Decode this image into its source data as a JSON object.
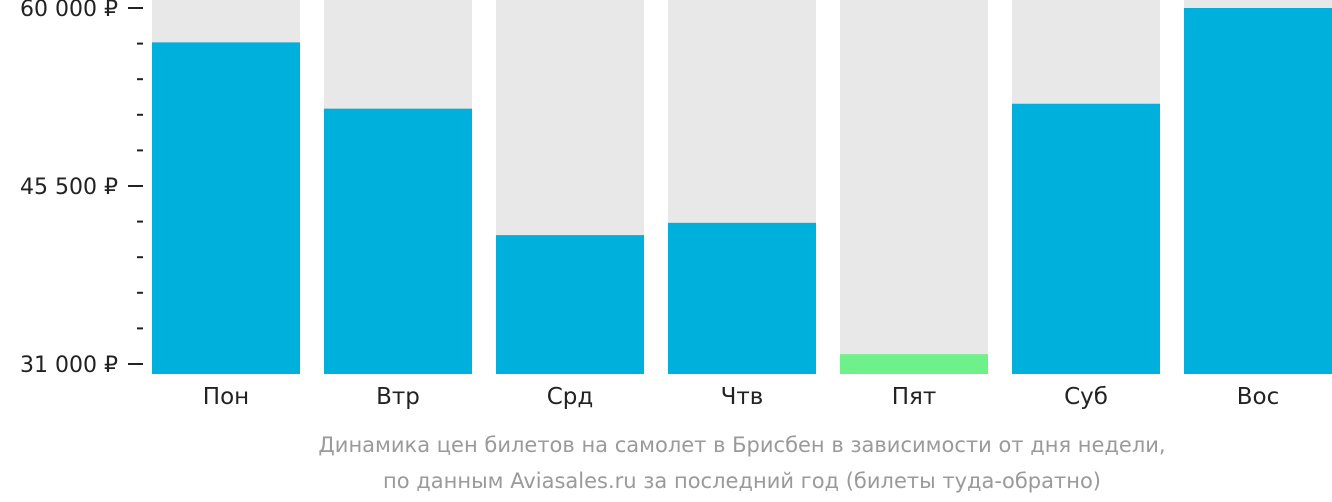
{
  "chart_data": {
    "type": "bar",
    "categories": [
      "Пон",
      "Втр",
      "Срд",
      "Чтв",
      "Пят",
      "Суб",
      "Вос"
    ],
    "values": [
      57200,
      51800,
      41500,
      42500,
      31800,
      52200,
      60000
    ],
    "ylim": [
      31000,
      60000
    ],
    "y_tick_labels": [
      "60 000 ₽",
      "45 500 ₽",
      "31 000 ₽"
    ],
    "y_tick_values": [
      60000,
      45500,
      31000
    ],
    "minor_ticks_between": 4,
    "caption": [
      "Динамика цен билетов на самолет в Брисбен в зависимости от дня недели,",
      "по данным Aviasales.ru за последний год (билеты туда-обратно)"
    ],
    "lowest_category": "Пят",
    "colors": {
      "bar": "#00b0dc",
      "lowest_bar": "#6ef08a",
      "track": "#e8e8e8",
      "axis": "#222222",
      "caption": "#9a9a9a"
    },
    "grid": false,
    "legend": "none"
  }
}
